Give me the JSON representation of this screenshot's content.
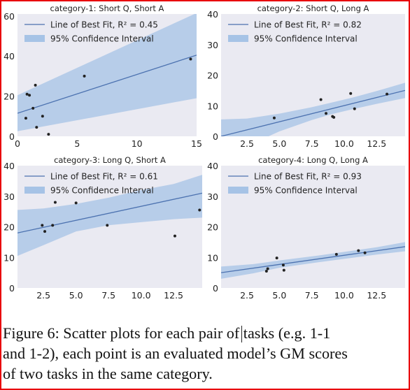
{
  "figure": {
    "caption_lines": [
      "Figure 6: Scatter plots for each pair of tasks (e.g. 1-1",
      "and 1-2), each point is an evaluated model’s GM scores",
      "of two tasks in the same category."
    ]
  },
  "colors": {
    "frame": "#e8000b",
    "background": "#eaeaf2",
    "line": "#4c72b0",
    "band": "#a6c3e6",
    "point": "#222222"
  },
  "chart_data": [
    {
      "type": "scatter",
      "title": "category-1: Short Q, Short A",
      "xlim": [
        0,
        15
      ],
      "ylim": [
        0,
        61
      ],
      "xticks": [
        0,
        5,
        10,
        15
      ],
      "xtick_labels": [
        "0",
        "5",
        "10",
        "15"
      ],
      "yticks": [
        0,
        20,
        40,
        60
      ],
      "ytick_labels": [
        "0",
        "20",
        "40",
        "60"
      ],
      "y_axis_side": "left",
      "grid": false,
      "legend": {
        "placement": "top-left",
        "line_label": "Line of Best Fit, R² = 0.45",
        "band_label": "95% Confidence Interval"
      },
      "points": [
        {
          "x": 0.7,
          "y": 9
        },
        {
          "x": 0.8,
          "y": 21
        },
        {
          "x": 1.0,
          "y": 20.5
        },
        {
          "x": 1.3,
          "y": 14
        },
        {
          "x": 1.5,
          "y": 25.5
        },
        {
          "x": 1.6,
          "y": 4.5
        },
        {
          "x": 2.1,
          "y": 10
        },
        {
          "x": 2.6,
          "y": 1
        },
        {
          "x": 5.6,
          "y": 30
        },
        {
          "x": 14.5,
          "y": 38.5
        }
      ],
      "fit": {
        "x": [
          0,
          15
        ],
        "y": [
          11.5,
          40.5
        ]
      },
      "ci": {
        "x": [
          0,
          15
        ],
        "upper": [
          20.5,
          61.5
        ],
        "lower": [
          2.5,
          19
        ]
      }
    },
    {
      "type": "scatter",
      "title": "category-2: Short Q, Long A",
      "xlim": [
        0.5,
        14.7
      ],
      "ylim": [
        0,
        40
      ],
      "xticks": [
        2.5,
        5.0,
        7.5,
        10.0,
        12.5
      ],
      "xtick_labels": [
        "2.5",
        "5.0",
        "7.5",
        "10.0",
        "12.5"
      ],
      "yticks": [
        0,
        10,
        20,
        30,
        40
      ],
      "ytick_labels": [
        "0",
        "10",
        "20",
        "30",
        "40"
      ],
      "y_axis_side": "right",
      "grid": false,
      "legend": {
        "placement": "top-left",
        "line_label": "Line of Best Fit, R² = 0.82",
        "band_label": "95% Confidence Interval"
      },
      "points": [
        {
          "x": 4.6,
          "y": 6
        },
        {
          "x": 8.2,
          "y": 12
        },
        {
          "x": 8.6,
          "y": 7.5
        },
        {
          "x": 9.1,
          "y": 6.5
        },
        {
          "x": 9.2,
          "y": 6.2
        },
        {
          "x": 10.5,
          "y": 14
        },
        {
          "x": 10.8,
          "y": 9
        },
        {
          "x": 13.3,
          "y": 13.8
        }
      ],
      "fit": {
        "x": [
          0.5,
          14.7
        ],
        "y": [
          0,
          15
        ]
      },
      "ci": {
        "x": [
          0.5,
          2.5,
          5,
          7.5,
          9,
          10.5,
          12.5,
          14.7
        ],
        "upper": [
          5.5,
          5.8,
          7.4,
          9.5,
          11,
          12.5,
          14.8,
          17.5
        ],
        "lower": [
          -5,
          -3.2,
          1.6,
          5.3,
          7.2,
          8.7,
          10.6,
          12.5
        ]
      }
    },
    {
      "type": "scatter",
      "title": "category-3: Long Q, Short A",
      "xlim": [
        0.5,
        14.7
      ],
      "ylim": [
        0,
        40
      ],
      "xticks": [
        2.5,
        5.0,
        7.5,
        10.0,
        12.5
      ],
      "xtick_labels": [
        "2.5",
        "5.0",
        "7.5",
        "10.0",
        "12.5"
      ],
      "yticks": [
        0,
        10,
        20,
        30,
        40
      ],
      "ytick_labels": [
        "0",
        "10",
        "20",
        "30",
        "40"
      ],
      "y_axis_side": "left",
      "grid": false,
      "legend": {
        "placement": "top-left",
        "line_label": "Line of Best Fit, R² = 0.61",
        "band_label": "95% Confidence Interval"
      },
      "points": [
        {
          "x": 2.4,
          "y": 20.5
        },
        {
          "x": 2.6,
          "y": 18.5
        },
        {
          "x": 3.2,
          "y": 20.5
        },
        {
          "x": 3.4,
          "y": 28
        },
        {
          "x": 5.0,
          "y": 27.8
        },
        {
          "x": 7.4,
          "y": 20.5
        },
        {
          "x": 12.6,
          "y": 17
        },
        {
          "x": 14.5,
          "y": 25.5
        }
      ],
      "fit": {
        "x": [
          0.5,
          14.7
        ],
        "y": [
          18,
          31
        ]
      },
      "ci": {
        "x": [
          0.5,
          2.5,
          5,
          7.5,
          10,
          12.5,
          14.7
        ],
        "upper": [
          25.5,
          26,
          27.5,
          29.5,
          32,
          34,
          37
        ],
        "lower": [
          10.5,
          14,
          18.5,
          20.5,
          21.5,
          22.5,
          23
        ]
      }
    },
    {
      "type": "scatter",
      "title": "category-4: Long Q, Long A",
      "xlim": [
        0.5,
        14.7
      ],
      "ylim": [
        0,
        40
      ],
      "xticks": [
        2.5,
        5.0,
        7.5,
        10.0,
        12.5
      ],
      "xtick_labels": [
        "2.5",
        "5.0",
        "7.5",
        "10.0",
        "12.5"
      ],
      "yticks": [
        0,
        10,
        20,
        30,
        40
      ],
      "ytick_labels": [
        "0",
        "10",
        "20",
        "30",
        "40"
      ],
      "y_axis_side": "right",
      "grid": false,
      "legend": {
        "placement": "top-left",
        "line_label": "Line of Best Fit, R² = 0.93",
        "band_label": "95% Confidence Interval"
      },
      "points": [
        {
          "x": 4.0,
          "y": 5.5
        },
        {
          "x": 4.1,
          "y": 6.3
        },
        {
          "x": 4.8,
          "y": 9.8
        },
        {
          "x": 5.3,
          "y": 7.5
        },
        {
          "x": 5.35,
          "y": 5.8
        },
        {
          "x": 9.4,
          "y": 11
        },
        {
          "x": 11.1,
          "y": 12.2
        },
        {
          "x": 11.6,
          "y": 11.5
        }
      ],
      "fit": {
        "x": [
          0.5,
          14.7
        ],
        "y": [
          5,
          13.5
        ]
      },
      "ci": {
        "x": [
          0.5,
          3,
          5,
          8,
          10,
          12.5,
          14.7
        ],
        "upper": [
          7,
          7.8,
          9,
          10.6,
          11.8,
          13.3,
          15
        ],
        "lower": [
          3,
          4.8,
          6.6,
          8.4,
          9.5,
          10.9,
          12
        ]
      }
    }
  ]
}
